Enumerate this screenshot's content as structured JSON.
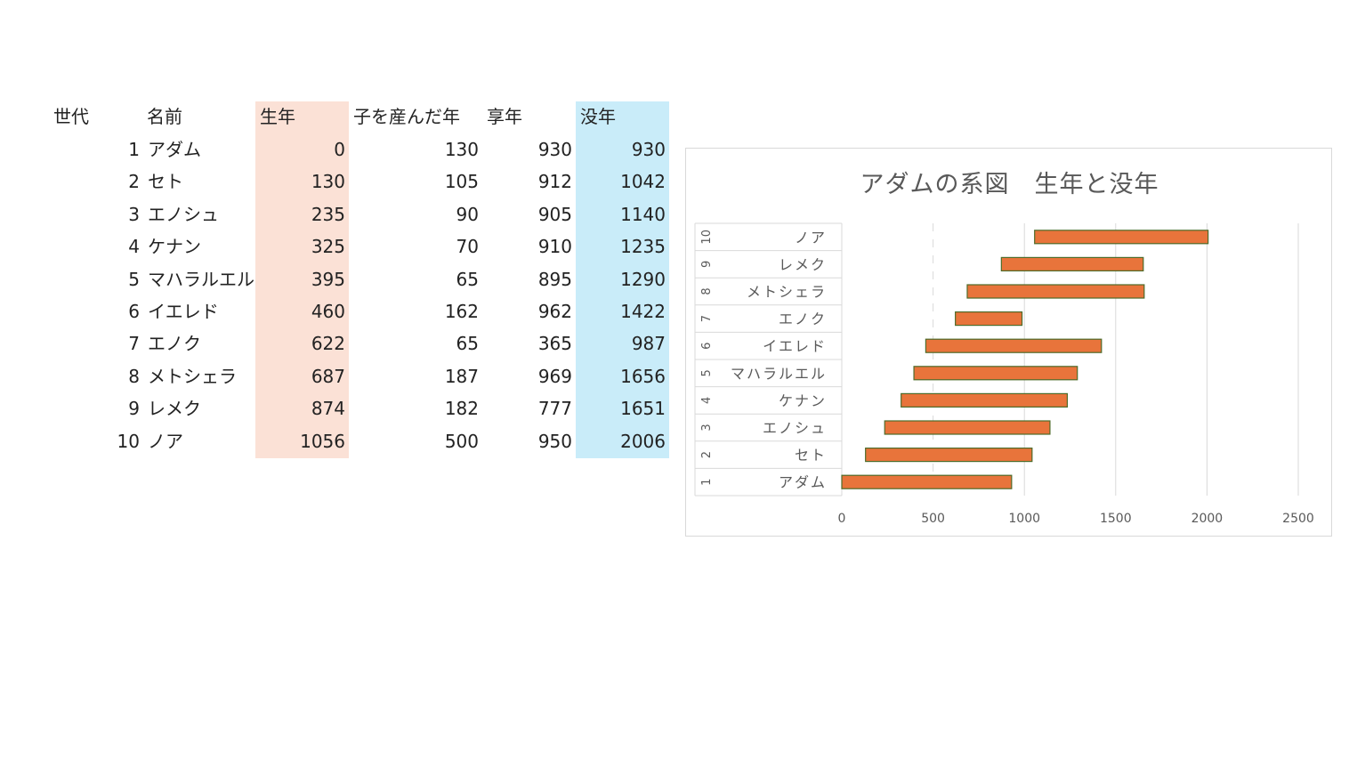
{
  "table": {
    "headers": {
      "generation": "世代",
      "name": "名前",
      "birth": "生年",
      "child_year": "子を産んだ年",
      "lifespan": "享年",
      "death": "没年"
    },
    "rows": [
      {
        "generation": "1",
        "name": "アダム",
        "birth": "0",
        "child_year": "130",
        "lifespan": "930",
        "death": "930"
      },
      {
        "generation": "2",
        "name": "セト",
        "birth": "130",
        "child_year": "105",
        "lifespan": "912",
        "death": "1042"
      },
      {
        "generation": "3",
        "name": "エノシュ",
        "birth": "235",
        "child_year": "90",
        "lifespan": "905",
        "death": "1140"
      },
      {
        "generation": "4",
        "name": "ケナン",
        "birth": "325",
        "child_year": "70",
        "lifespan": "910",
        "death": "1235"
      },
      {
        "generation": "5",
        "name": "マハラルエル",
        "birth": "395",
        "child_year": "65",
        "lifespan": "895",
        "death": "1290"
      },
      {
        "generation": "6",
        "name": "イエレド",
        "birth": "460",
        "child_year": "162",
        "lifespan": "962",
        "death": "1422"
      },
      {
        "generation": "7",
        "name": "エノク",
        "birth": "622",
        "child_year": "65",
        "lifespan": "365",
        "death": "987"
      },
      {
        "generation": "8",
        "name": "メトシェラ",
        "birth": "687",
        "child_year": "187",
        "lifespan": "969",
        "death": "1656"
      },
      {
        "generation": "9",
        "name": "レメク",
        "birth": "874",
        "child_year": "182",
        "lifespan": "777",
        "death": "1651"
      },
      {
        "generation": "10",
        "name": "ノア",
        "birth": "1056",
        "child_year": "500",
        "lifespan": "950",
        "death": "2006"
      }
    ]
  },
  "chart_data": {
    "type": "bar",
    "orientation": "horizontal",
    "stacked": true,
    "title": "アダムの系図　生年と没年",
    "categories": [
      {
        "generation": "1",
        "name": "アダム"
      },
      {
        "generation": "2",
        "name": "セト"
      },
      {
        "generation": "3",
        "name": "エノシュ"
      },
      {
        "generation": "4",
        "name": "ケナン"
      },
      {
        "generation": "5",
        "name": "マハラルエル"
      },
      {
        "generation": "6",
        "name": "イエレド"
      },
      {
        "generation": "7",
        "name": "エノク"
      },
      {
        "generation": "8",
        "name": "メトシェラ"
      },
      {
        "generation": "9",
        "name": "レメク"
      },
      {
        "generation": "10",
        "name": "ノア"
      }
    ],
    "series": [
      {
        "values": [
          0,
          130,
          235,
          325,
          395,
          460,
          622,
          687,
          874,
          1056
        ],
        "fill": "none"
      },
      {
        "values": [
          930,
          912,
          905,
          910,
          895,
          962,
          365,
          969,
          777,
          950
        ],
        "fill": "#e8743b"
      }
    ],
    "xlim": [
      0,
      2500
    ],
    "xticks": [
      0,
      500,
      1000,
      1500,
      2000,
      2500
    ],
    "gridlines": true,
    "legend": "none",
    "colors": {
      "bar": "#e8743b",
      "bar_border": "#4e6b2a",
      "grid": "#d9d9d9",
      "text": "#595959"
    }
  }
}
